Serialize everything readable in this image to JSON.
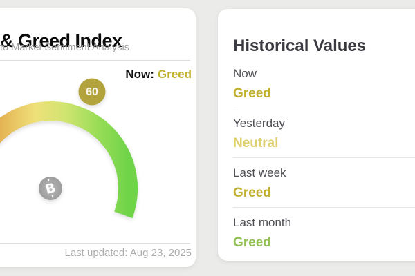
{
  "theme": {
    "background": "#ebebe9",
    "card_background": "#ffffff",
    "gold": "#c2b131",
    "pale_gold": "#ddd06d",
    "green": "#94c156",
    "badge": "#b2a33c",
    "needle": "#9f9f9f",
    "arc_gradient": [
      "#d99a43",
      "#e3ae4f",
      "#efe07a",
      "#d0e470",
      "#9add57",
      "#70d449"
    ]
  },
  "gauge_card": {
    "title": "& Greed Index",
    "subtitle": "to Market Sentiment Analysis",
    "now_label": "Now:",
    "now_value": "Greed",
    "last_updated": "Last updated: Aug 23, 2025",
    "gauge": {
      "value": 60,
      "min": 0,
      "max": 100,
      "bitcoin_symbol": "B"
    }
  },
  "history_card": {
    "title": "Historical Values",
    "rows": [
      {
        "label": "Now",
        "value": "Greed",
        "color": "#c2b131"
      },
      {
        "label": "Yesterday",
        "value": "Neutral",
        "color": "#ddd06d"
      },
      {
        "label": "Last week",
        "value": "Greed",
        "color": "#c2b131"
      },
      {
        "label": "Last month",
        "value": "Greed",
        "color": "#94c156"
      }
    ]
  },
  "chart_data": {
    "type": "gauge",
    "title": "& Greed Index",
    "value": 60,
    "min": 0,
    "max": 100,
    "current_label": "Greed",
    "arc_span_degrees": 220,
    "scale": "orange (fear, left) through yellow to green (greed, right)",
    "history": [
      {
        "period": "Now",
        "value": "Greed"
      },
      {
        "period": "Yesterday",
        "value": "Neutral"
      },
      {
        "period": "Last week",
        "value": "Greed"
      },
      {
        "period": "Last month",
        "value": "Greed"
      }
    ]
  }
}
